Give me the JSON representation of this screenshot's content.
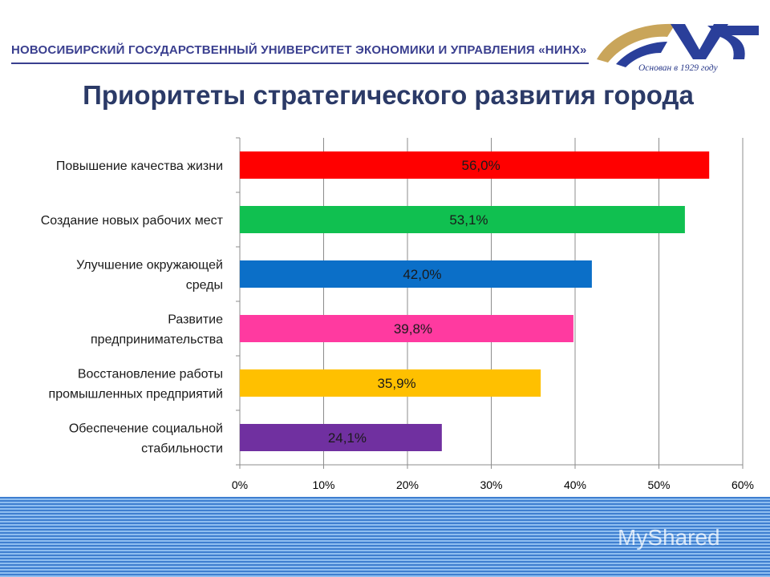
{
  "header": {
    "university": "НОВОСИБИРСКИЙ ГОСУДАРСТВЕННЫЙ УНИВЕРСИТЕТ ЭКОНОМИКИ И УПРАВЛЕНИЯ «НИНХ»",
    "logo_tagline": "Основан в 1929 году"
  },
  "slide": {
    "title": "Приоритеты стратегического развития города"
  },
  "watermark": "MyShared",
  "colors": {
    "header_text": "#3a3f8f",
    "title_text": "#2b3a67"
  },
  "chart_data": {
    "type": "bar",
    "orientation": "horizontal",
    "categories": [
      [
        "Повышение качества жизни"
      ],
      [
        "Создание новых рабочих мест"
      ],
      [
        "Улучшение окружающей",
        "среды"
      ],
      [
        "Развитие",
        "предпринимательства"
      ],
      [
        "Восстановление работы",
        "промышленных предприятий"
      ],
      [
        "Обеспечение социальной",
        "стабильности"
      ]
    ],
    "values": [
      56.0,
      53.1,
      42.0,
      39.8,
      35.9,
      24.1
    ],
    "data_labels": [
      "56,0%",
      "53,1%",
      "42,0%",
      "39,8%",
      "35,9%",
      "24,1%"
    ],
    "bar_colors": [
      "#ff0000",
      "#10c050",
      "#0b6fc8",
      "#ff3aa0",
      "#ffc000",
      "#7030a0"
    ],
    "xlim": [
      0,
      60
    ],
    "ticks": [
      0,
      10,
      20,
      30,
      40,
      50,
      60
    ],
    "tick_labels": [
      "0%",
      "10%",
      "20%",
      "30%",
      "40%",
      "50%",
      "60%"
    ],
    "grid": true,
    "title": "",
    "xlabel": "",
    "ylabel": ""
  }
}
